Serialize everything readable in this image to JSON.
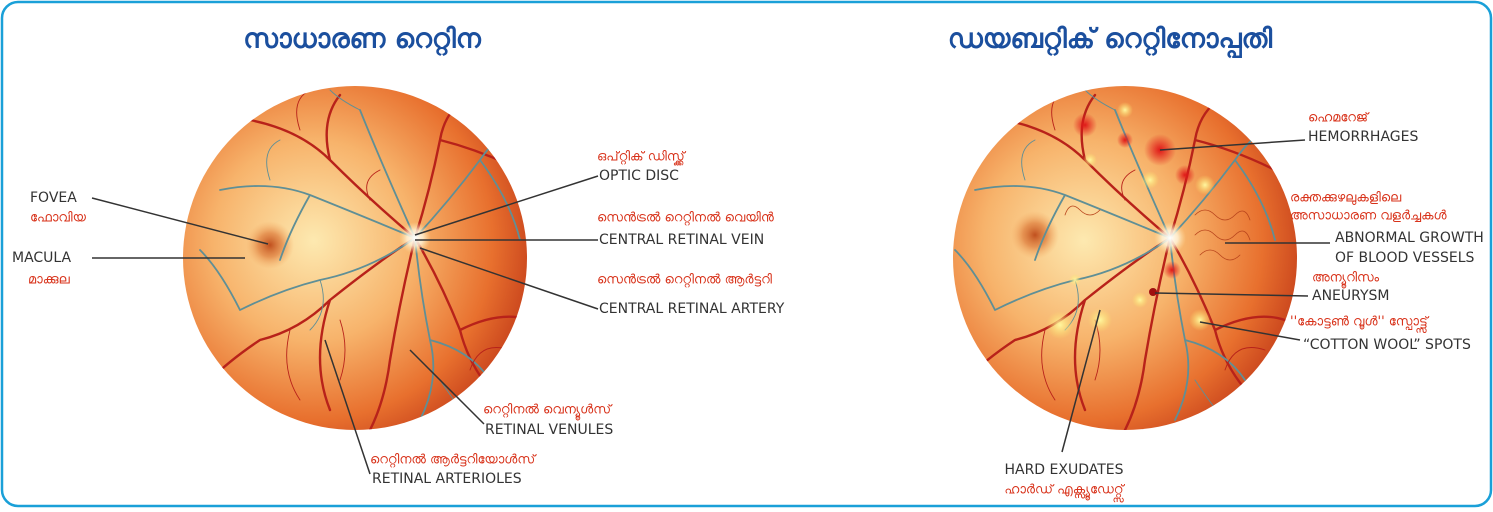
{
  "normal": {
    "title": "സാധാരണ റെറ്റിന",
    "labels": [
      {
        "en": [
          "FOVEA"
        ],
        "ml": [
          "ഫോവിയ"
        ]
      },
      {
        "en": [
          "MACULA"
        ],
        "ml": [
          "മാക്കുല"
        ]
      },
      {
        "en": [
          "OPTIC DISC"
        ],
        "ml": [
          "ഒപ്റ്റിക് ഡിസ്ക്ക്"
        ]
      },
      {
        "en": [
          "CENTRAL RETINAL VEIN"
        ],
        "ml": [
          "സെൻട്രൽ റെറ്റിനൽ വെയിൻ"
        ]
      },
      {
        "en": [
          "CENTRAL RETINAL ARTERY"
        ],
        "ml": [
          "സെൻട്രൽ റെറ്റിനൽ ആർട്ടറി"
        ]
      },
      {
        "en": [
          "RETINAL VENULES"
        ],
        "ml": [
          "റെറ്റിനൽ വെന്യൂൾസ്"
        ]
      },
      {
        "en": [
          "RETINAL ARTERIOLES"
        ],
        "ml": [
          "റെറ്റിനൽ ആർട്ടറിയോൾസ്"
        ]
      }
    ]
  },
  "diabetic": {
    "title": "ഡയബറ്റിക് റെറ്റിനോപ്പതി",
    "labels": [
      {
        "en": [
          "HEMORRHAGES"
        ],
        "ml": [
          "ഹെമറേജ്"
        ]
      },
      {
        "en": [
          "ABNORMAL GROWTH",
          "OF BLOOD VESSELS"
        ],
        "ml": [
          "രക്തക്കുഴലുകളിലെ",
          "അസാധാരണ വളർച്ചകൾ"
        ]
      },
      {
        "en": [
          "ANEURYSM"
        ],
        "ml": [
          "അന്യൂറിസം"
        ]
      },
      {
        "en": [
          "“COTTON WOOL” SPOTS"
        ],
        "ml": [
          "''കോട്ടൺ വൂൾ'' സ്പോട്ട്സ്"
        ]
      },
      {
        "en": [
          "HARD EXUDATES"
        ],
        "ml": [
          "ഹാർഡ് എക്സ്യൂഡേറ്റ്സ്"
        ]
      }
    ]
  }
}
